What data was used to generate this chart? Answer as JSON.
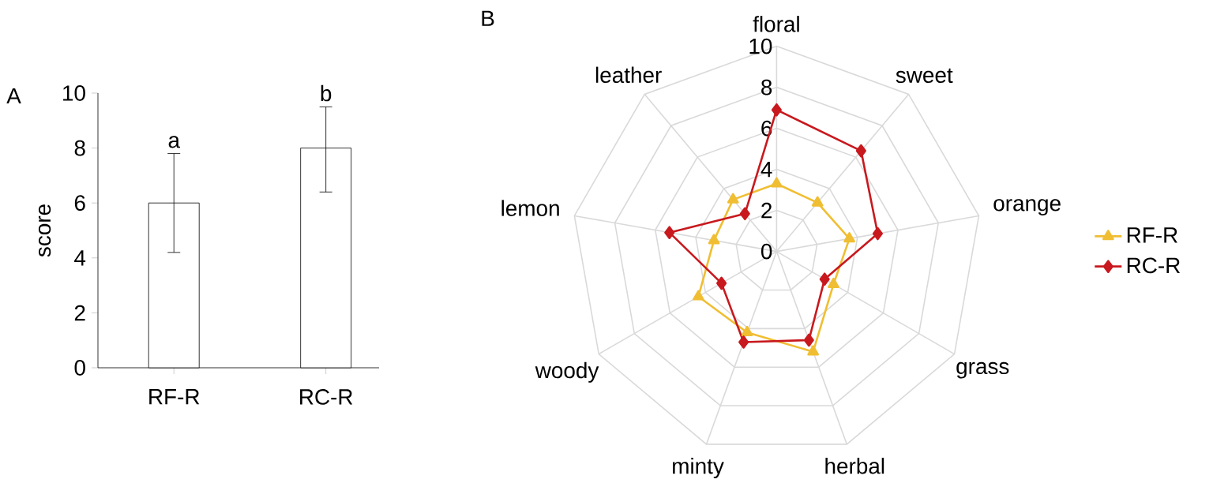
{
  "chart_data": [
    {
      "type": "bar",
      "title": "A",
      "categories": [
        "RF-R",
        "RC-R"
      ],
      "values": [
        6.0,
        8.0
      ],
      "errors": [
        [
          4.2,
          7.8
        ],
        [
          6.4,
          9.5
        ]
      ],
      "color": "#ffffff",
      "ylabel": "score",
      "ylim": [
        0,
        10
      ],
      "yticks": [
        0,
        2,
        4,
        6,
        8,
        10
      ],
      "annotations": [
        {
          "text": "a",
          "x": "RF-R",
          "y": 7.8
        },
        {
          "text": "b",
          "x": "RC-R",
          "y": 9.5
        }
      ]
    },
    {
      "type": "radar",
      "title": "B",
      "categories": [
        "floral",
        "sweet",
        "orange",
        "grass",
        "herbal",
        "minty",
        "woody",
        "lemon",
        "leather"
      ],
      "ylim": [
        0,
        10
      ],
      "yticks": [
        0,
        2,
        4,
        6,
        8,
        10
      ],
      "grid": true,
      "legend": "right",
      "series": [
        {
          "name": "RF-R",
          "color": "#f0be32",
          "marker": "triangle",
          "values": [
            3.3,
            3.1,
            3.6,
            3.2,
            5.2,
            4.2,
            4.4,
            3.1,
            3.3
          ]
        },
        {
          "name": "RC-R",
          "color": "#c8191e",
          "marker": "diamond",
          "values": [
            6.9,
            6.4,
            5.0,
            2.7,
            4.6,
            4.7,
            3.1,
            5.3,
            2.4
          ]
        }
      ]
    }
  ]
}
